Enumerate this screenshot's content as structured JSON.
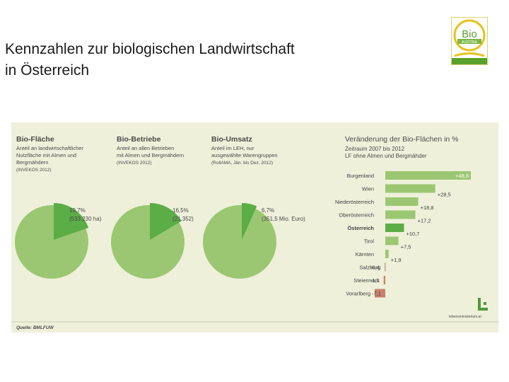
{
  "slide": {
    "title_line1": "Kennzahlen zur biologischen Landwirtschaft",
    "title_line2": "in Österreich"
  },
  "logo": {
    "name": "bio-austria-logo",
    "text_bio": "Bio",
    "text_austria": "AUSTRIA"
  },
  "colors": {
    "panel_bg": "#eef0da",
    "light_green": "#9cc772",
    "dark_green": "#5bad46",
    "negative": "#c9806a",
    "text": "#4a4a4a"
  },
  "panels": {
    "flaeche": {
      "heading": "Bio-Fläche",
      "sub1": "Anteil an landwirtschaftlicher",
      "sub2": "Nutzfläche mit Almen und",
      "sub3": "Bergmähdern",
      "source": "(INVEKOS 2012)"
    },
    "betriebe": {
      "heading": "Bio-Betriebe",
      "sub1": "Anteil an allen Betrieben",
      "sub2": "mit Almen und Bergmähdern",
      "source": "(INVEKOS 2012)"
    },
    "umsatz": {
      "heading": "Bio-Umsatz",
      "sub1": "Anteil im LEH, nur",
      "sub2": "ausgewählte Warengruppen",
      "source": "(RollAMA, Jän. bis Dez. 2012)"
    }
  },
  "footer": {
    "source": "Quelle: BMLFUW",
    "credit": "lebensministerium.at"
  },
  "chart_data": [
    {
      "type": "pie",
      "id": "pie-flaeche",
      "title": "Bio-Fläche",
      "share_percent": 19.7,
      "label_pct": "19,7%",
      "label_abs": "(533.230 ha)"
    },
    {
      "type": "pie",
      "id": "pie-betriebe",
      "title": "Bio-Betriebe",
      "share_percent": 16.5,
      "label_pct": "16,5%",
      "label_abs": "(21.352)"
    },
    {
      "type": "pie",
      "id": "pie-umsatz",
      "title": "Bio-Umsatz",
      "share_percent": 6.7,
      "label_pct": "6,7%",
      "label_abs": "(351,5 Mio. Euro)"
    },
    {
      "type": "bar",
      "orientation": "horizontal",
      "title": "Veränderung der Bio-Flächen in %",
      "subtitle1": "Zeitraum 2007 bis 2012",
      "subtitle2": "LF ohne Almen und Bergmähder",
      "categories": [
        "Burgenland",
        "Wien",
        "Niederösterreich",
        "Oberösterreich",
        "Österreich",
        "Tirol",
        "Kärnten",
        "Salzburg",
        "Steiermark",
        "Vorarlberg"
      ],
      "values": [
        48.8,
        28.5,
        18.8,
        17.2,
        10.7,
        7.5,
        1.9,
        -0.4,
        -1.1,
        -7.1
      ],
      "value_labels": [
        "+48,8",
        "+28,5",
        "+18,8",
        "+17,2",
        "+10,7",
        "+7,5",
        "+1,9",
        "-0,4",
        "-1,1",
        "-7,1"
      ],
      "highlight": "Österreich",
      "xlim": [
        -7.1,
        48.8
      ]
    }
  ]
}
